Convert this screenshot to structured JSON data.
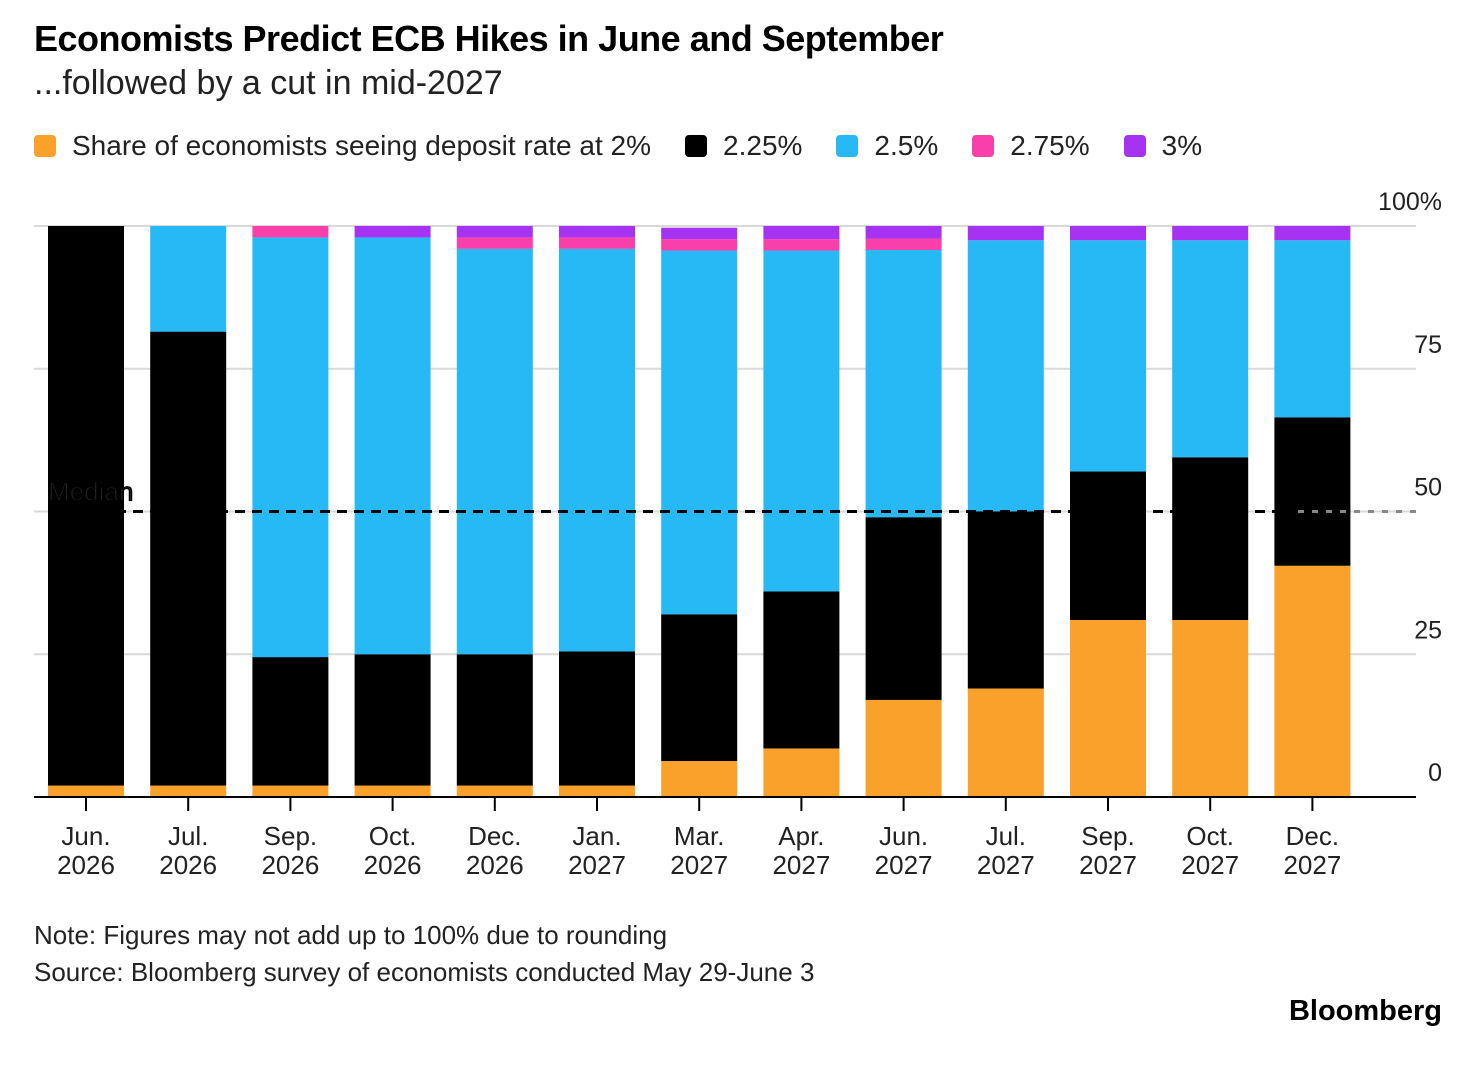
{
  "header": {
    "title": "Economists Predict ECB Hikes in June and September",
    "subtitle": "...followed by a cut in mid-2027"
  },
  "legend": [
    {
      "label": "Share of economists seeing deposit rate at 2%",
      "color": "#f9a12b"
    },
    {
      "label": "2.25%",
      "color": "#000000"
    },
    {
      "label": "2.5%",
      "color": "#27b9f5"
    },
    {
      "label": "2.75%",
      "color": "#f83faa"
    },
    {
      "label": "3%",
      "color": "#a733f2"
    }
  ],
  "footer": {
    "note": "Note: Figures may not add up to 100% due to rounding",
    "source": "Source: Bloomberg survey of economists conducted May 29-June 3",
    "brand": "Bloomberg"
  },
  "chart_data": {
    "type": "bar",
    "stacked": true,
    "categories": [
      [
        "Jun.",
        "2026"
      ],
      [
        "Jul.",
        "2026"
      ],
      [
        "Sep.",
        "2026"
      ],
      [
        "Oct.",
        "2026"
      ],
      [
        "Dec.",
        "2026"
      ],
      [
        "Jan.",
        "2027"
      ],
      [
        "Mar.",
        "2027"
      ],
      [
        "Apr.",
        "2027"
      ],
      [
        "Jun.",
        "2027"
      ],
      [
        "Jul.",
        "2027"
      ],
      [
        "Sep.",
        "2027"
      ],
      [
        "Oct.",
        "2027"
      ],
      [
        "Dec.",
        "2027"
      ]
    ],
    "series": [
      {
        "name": "Share of economists seeing deposit rate at 2%",
        "color": "#f9a12b",
        "values": [
          2,
          2,
          2,
          2,
          2,
          2,
          6.3,
          8.5,
          17,
          19,
          31,
          31,
          40.5
        ]
      },
      {
        "name": "2.25%",
        "color": "#000000",
        "values": [
          98,
          79.5,
          22.5,
          23,
          23,
          23.5,
          25.7,
          27.5,
          32,
          31,
          26,
          28.5,
          26
        ]
      },
      {
        "name": "2.5%",
        "color": "#27b9f5",
        "values": [
          0,
          18.5,
          73.5,
          73,
          71,
          70.5,
          63.7,
          59.7,
          46.8,
          47.5,
          40.5,
          38,
          31
        ]
      },
      {
        "name": "2.75%",
        "color": "#f83faa",
        "values": [
          0,
          0,
          2,
          0,
          2,
          2,
          2,
          2,
          2,
          0,
          0,
          0,
          0
        ]
      },
      {
        "name": "3%",
        "color": "#a733f2",
        "values": [
          0,
          0,
          0,
          2,
          2,
          2,
          2,
          2.3,
          2.2,
          2.5,
          2.5,
          2.5,
          2.5
        ]
      }
    ],
    "ylim": [
      0,
      100
    ],
    "yticks": [
      {
        "value": 0,
        "label": "0"
      },
      {
        "value": 25,
        "label": "25"
      },
      {
        "value": 50,
        "label": "50"
      },
      {
        "value": 75,
        "label": "75"
      },
      {
        "value": 100,
        "label": "100%"
      }
    ],
    "y_axis_side": "right",
    "grid": true,
    "reference_line": {
      "value": 50,
      "label": "Median",
      "style": "dashed"
    },
    "legend_position": "top-left"
  }
}
